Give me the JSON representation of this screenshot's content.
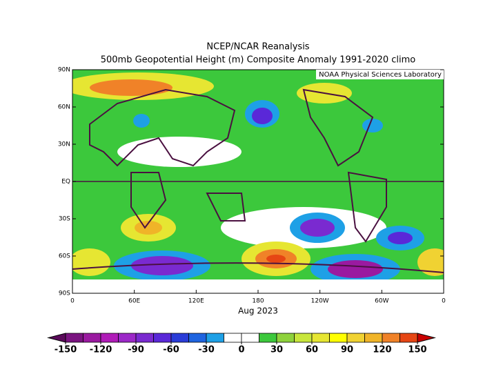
{
  "header": {
    "title": "NCEP/NCAR Reanalysis",
    "subtitle": "500mb Geopotential Height (m) Composite Anomaly 1991-2020 climo",
    "credit": "NOAA Physical Sciences Laboratory"
  },
  "map": {
    "period": "Aug 2023",
    "lat_ticks": [
      {
        "value": 90,
        "label": "90N"
      },
      {
        "value": 60,
        "label": "60N"
      },
      {
        "value": 30,
        "label": "30N"
      },
      {
        "value": 0,
        "label": "EQ"
      },
      {
        "value": -30,
        "label": "30S"
      },
      {
        "value": -60,
        "label": "60S"
      },
      {
        "value": -90,
        "label": "90S"
      }
    ],
    "lon_ticks": [
      0,
      {
        "value": 60,
        "label": "60E"
      },
      {
        "value": 120,
        "label": "120E"
      },
      180,
      {
        "value": 240,
        "label": "120W"
      },
      {
        "value": 300,
        "label": "60W"
      },
      {
        "value": 360,
        "label": "0"
      }
    ]
  },
  "colorbar": {
    "ticks": [
      -150,
      -120,
      -90,
      -60,
      -30,
      0,
      30,
      60,
      90,
      120,
      150
    ],
    "under_color": "#5a0a5a",
    "over_color": "#c80000",
    "colors": [
      "#7a1480",
      "#9a1aa0",
      "#b01cb8",
      "#9c28c8",
      "#7a2ad0",
      "#5a28d8",
      "#2a3cd8",
      "#1e64e0",
      "#1ea0e6",
      "#ffffff",
      "#ffffff",
      "#3cc83c",
      "#8ed23c",
      "#c8e63c",
      "#e6e632",
      "#ffff00",
      "#f0d232",
      "#f0b428",
      "#f08228",
      "#e64614"
    ]
  }
}
